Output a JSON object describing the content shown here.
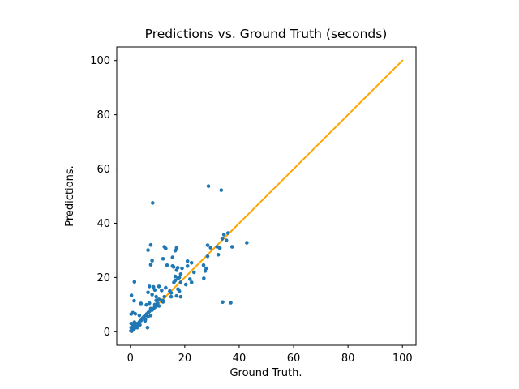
{
  "figure": {
    "background": "#ffffff",
    "text_color": "#000000",
    "spine_color": "#000000"
  },
  "chart_data": {
    "type": "scatter",
    "title": "Predictions vs. Ground Truth (seconds)",
    "xlabel": "Ground Truth.",
    "ylabel": "Predictions.",
    "xlim": [
      -5,
      105
    ],
    "ylim": [
      -5,
      105
    ],
    "x_ticks": [
      0,
      20,
      40,
      60,
      80,
      100
    ],
    "y_ticks": [
      0,
      20,
      40,
      60,
      80,
      100
    ],
    "grid": false,
    "legend": "none",
    "series": [
      {
        "name": "identity-line",
        "kind": "line",
        "color": "#ffa500",
        "line_width": 2,
        "points": [
          [
            0,
            0
          ],
          [
            100,
            100
          ]
        ]
      },
      {
        "name": "prediction-points",
        "kind": "scatter",
        "color": "#1f77b4",
        "marker_radius": 2.3,
        "points": [
          [
            0.2,
            0.3
          ],
          [
            0.5,
            0.2
          ],
          [
            0.3,
            1.5
          ],
          [
            0.6,
            1.0
          ],
          [
            1.0,
            0.8
          ],
          [
            1.5,
            1.2
          ],
          [
            0.8,
            2.5
          ],
          [
            1.3,
            2.0
          ],
          [
            2.0,
            2.0
          ],
          [
            2.5,
            2.5
          ],
          [
            0.3,
            3.0
          ],
          [
            1.5,
            3.5
          ],
          [
            2.0,
            3.0
          ],
          [
            2.5,
            1.5
          ],
          [
            3.0,
            3.2
          ],
          [
            3.5,
            2.5
          ],
          [
            3.5,
            3.8
          ],
          [
            4.0,
            4.2
          ],
          [
            4.5,
            5.0
          ],
          [
            5.0,
            5.5
          ],
          [
            5.5,
            4.5
          ],
          [
            5.4,
            4.0
          ],
          [
            5.5,
            6.0
          ],
          [
            6.0,
            6.5
          ],
          [
            6.3,
            1.5
          ],
          [
            6.5,
            5.5
          ],
          [
            6.5,
            7.0
          ],
          [
            7.0,
            7.5
          ],
          [
            7.5,
            6.0
          ],
          [
            7.5,
            8.5
          ],
          [
            8.0,
            8.0
          ],
          [
            8.5,
            8.5
          ],
          [
            9.0,
            9.0
          ],
          [
            9.0,
            10.0
          ],
          [
            9.5,
            11.5
          ],
          [
            10.0,
            10.5
          ],
          [
            10.5,
            9.5
          ],
          [
            11.5,
            11.5
          ],
          [
            12.0,
            11.0
          ],
          [
            0.9,
            7.0
          ],
          [
            0.3,
            6.5
          ],
          [
            1.8,
            6.6
          ],
          [
            3.3,
            6.0
          ],
          [
            0.4,
            13.4
          ],
          [
            1.4,
            11.4
          ],
          [
            3.9,
            10.4
          ],
          [
            5.9,
            9.9
          ],
          [
            7.0,
            10.5
          ],
          [
            1.5,
            18.4
          ],
          [
            7.0,
            16.7
          ],
          [
            9.0,
            15.4
          ],
          [
            10.5,
            16.7
          ],
          [
            11.5,
            15.2
          ],
          [
            13.0,
            16.2
          ],
          [
            14.5,
            15.0
          ],
          [
            16.0,
            18.2
          ],
          [
            17.5,
            19.7
          ],
          [
            18.5,
            21.2
          ],
          [
            17.0,
            22.7
          ],
          [
            19.0,
            23.4
          ],
          [
            8.0,
            13.7
          ],
          [
            9.5,
            12.9
          ],
          [
            12.5,
            12.9
          ],
          [
            15.0,
            12.9
          ],
          [
            10.5,
            11.9
          ],
          [
            12.0,
            11.4
          ],
          [
            15.5,
            24.2
          ],
          [
            6.5,
            14.5
          ],
          [
            8.5,
            16.5
          ],
          [
            15.0,
            14.3
          ],
          [
            17.0,
            13.2
          ],
          [
            18.5,
            12.9
          ],
          [
            17.5,
            15.7
          ],
          [
            16.5,
            18.9
          ],
          [
            18.5,
            18.2
          ],
          [
            22.5,
            18.2
          ],
          [
            18.0,
            15.0
          ],
          [
            18.0,
            20.0
          ],
          [
            16.5,
            20.4
          ],
          [
            20.4,
            17.4
          ],
          [
            21.0,
            26.0
          ],
          [
            22.5,
            25.4
          ],
          [
            21.0,
            24.2
          ],
          [
            23.4,
            21.9
          ],
          [
            21.9,
            19.4
          ],
          [
            27.0,
            19.7
          ],
          [
            26.9,
            24.5
          ],
          [
            27.9,
            23.4
          ],
          [
            27.5,
            22.4
          ],
          [
            28.4,
            27.8
          ],
          [
            28.4,
            31.9
          ],
          [
            29.5,
            31.0
          ],
          [
            31.9,
            31.3
          ],
          [
            32.3,
            28.4
          ],
          [
            32.9,
            30.8
          ],
          [
            33.8,
            34.3
          ],
          [
            34.4,
            35.8
          ],
          [
            35.9,
            36.4
          ],
          [
            35.3,
            33.7
          ],
          [
            37.4,
            31.3
          ],
          [
            42.8,
            32.8
          ],
          [
            8.2,
            47.5
          ],
          [
            28.7,
            53.7
          ],
          [
            33.4,
            52.2
          ],
          [
            6.5,
            30.1
          ],
          [
            7.5,
            32.0
          ],
          [
            12.5,
            31.3
          ],
          [
            17.0,
            30.9
          ],
          [
            8.0,
            26.2
          ],
          [
            7.5,
            24.7
          ],
          [
            12.0,
            26.9
          ],
          [
            13.0,
            30.7
          ],
          [
            16.5,
            29.9
          ],
          [
            15.5,
            27.4
          ],
          [
            13.5,
            24.5
          ],
          [
            15.9,
            23.9
          ],
          [
            17.4,
            23.6
          ],
          [
            33.9,
            10.9
          ],
          [
            36.9,
            10.7
          ]
        ]
      }
    ]
  }
}
